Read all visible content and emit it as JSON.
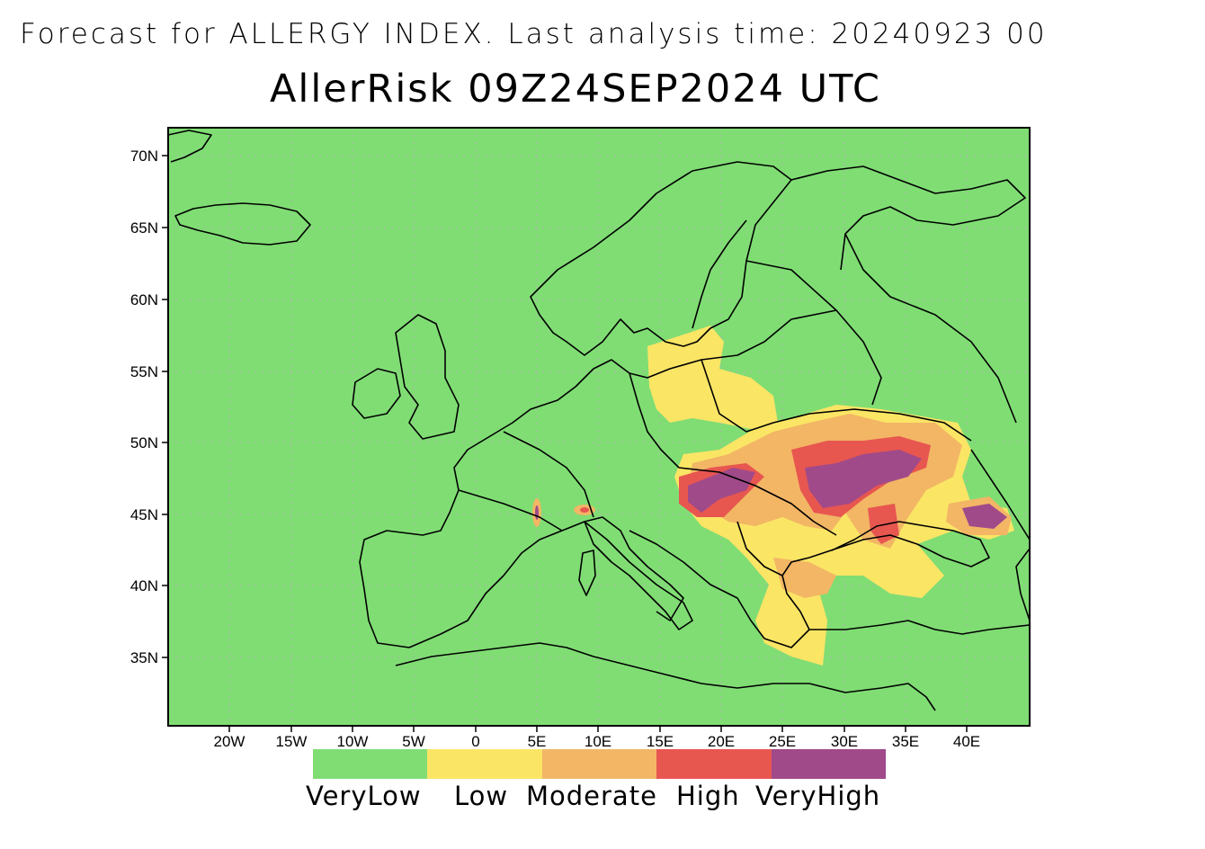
{
  "header": {
    "forecast_line": "Forecast for ALLERGY INDEX. Last analysis time: 20240923 00",
    "title": "AllerRisk 09Z24SEP2024 UTC"
  },
  "map": {
    "lat_labels": [
      "70N",
      "65N",
      "60N",
      "55N",
      "50N",
      "45N",
      "40N",
      "35N"
    ],
    "lon_labels": [
      "20W",
      "15W",
      "10W",
      "5W",
      "0",
      "5E",
      "10E",
      "15E",
      "20E",
      "25E",
      "30E",
      "35E",
      "40E"
    ],
    "extent": {
      "lon_min": -25,
      "lon_max": 45,
      "lat_min": 30,
      "lat_max": 72
    },
    "grid": true
  },
  "legend": {
    "items": [
      {
        "label": "VeryLow",
        "color": "#80dd74"
      },
      {
        "label": "Low",
        "color": "#fbe565"
      },
      {
        "label": "Moderate",
        "color": "#f2b665"
      },
      {
        "label": "High",
        "color": "#e85650"
      },
      {
        "label": "VeryHigh",
        "color": "#a04a8a"
      }
    ]
  },
  "colors": {
    "background": "#80dd74",
    "coastline": "#000000",
    "grid": "#b0b0b0"
  }
}
